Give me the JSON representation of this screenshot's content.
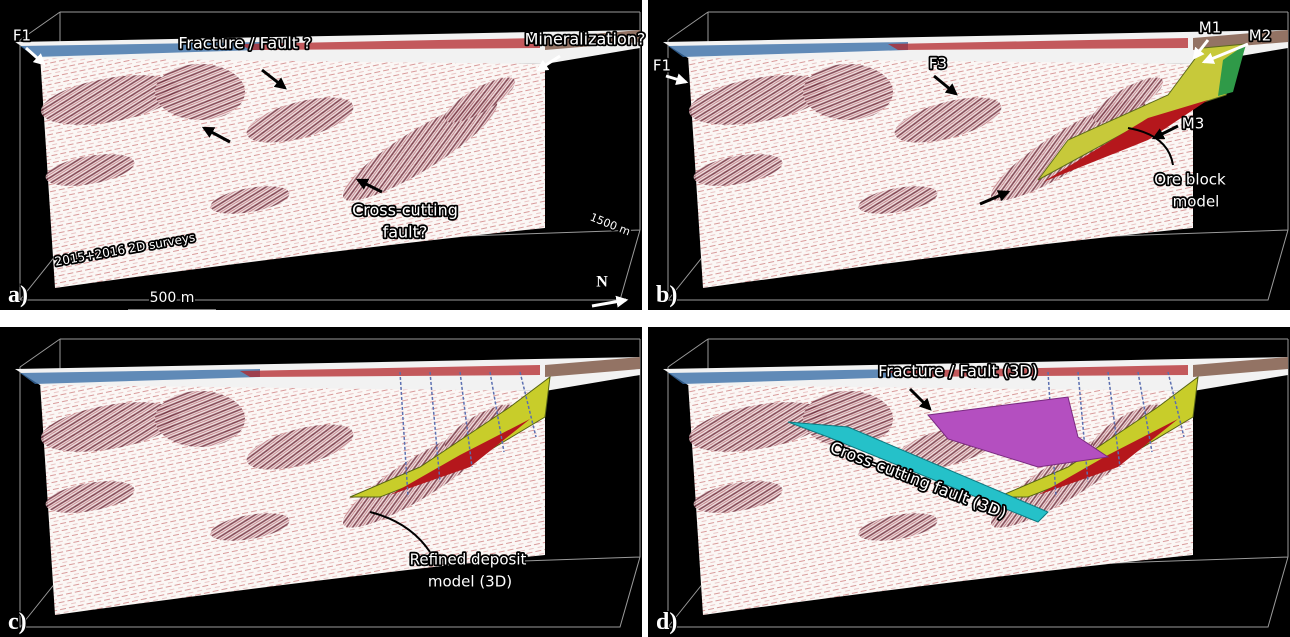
{
  "figure": {
    "panels": [
      {
        "label": "a)",
        "annotations": [
          "F1",
          "Fracture / Fault ?",
          "Mineralization?",
          "Cross-cutting",
          "fault?",
          "2015+2016 2D surveys",
          "1500 m",
          "500 m",
          "N"
        ]
      },
      {
        "label": "b)",
        "annotations": [
          "F1",
          "F3",
          "M1",
          "M2",
          "M3",
          "Ore block",
          "model"
        ]
      },
      {
        "label": "c)",
        "annotations": [
          "Refined deposit",
          "model (3D)"
        ]
      },
      {
        "label": "d)",
        "annotations": [
          "Fracture / Fault (3D)",
          "Cross-cutting fault (3D)"
        ]
      }
    ]
  }
}
